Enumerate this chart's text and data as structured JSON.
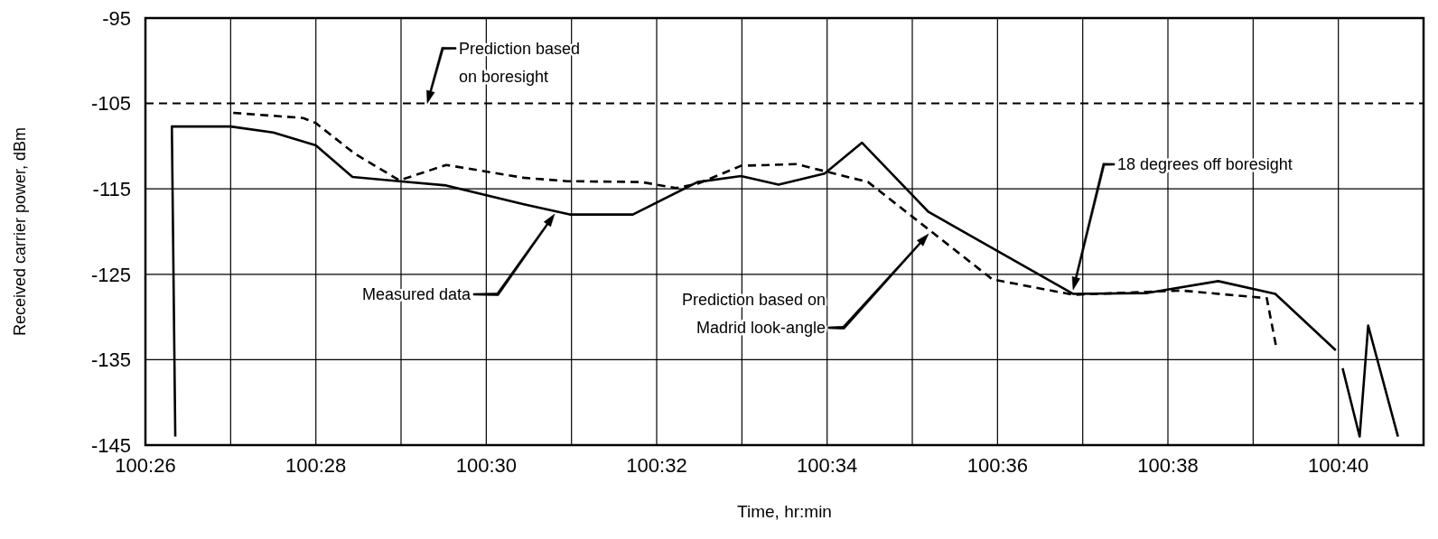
{
  "chart_data": {
    "type": "line",
    "xlabel": "Time, hr:min",
    "ylabel": "Received carrier power, dBm",
    "xlim": [
      100.43333,
      100.68333
    ],
    "xticks": [
      {
        "value": 100.43333,
        "label": "100:26"
      },
      {
        "value": 100.45,
        "label": null
      },
      {
        "value": 100.46667,
        "label": "100:28"
      },
      {
        "value": 100.48333,
        "label": null
      },
      {
        "value": 100.5,
        "label": "100:30"
      },
      {
        "value": 100.51667,
        "label": null
      },
      {
        "value": 100.53333,
        "label": "100:32"
      },
      {
        "value": 100.55,
        "label": null
      },
      {
        "value": 100.56667,
        "label": "100:34"
      },
      {
        "value": 100.58333,
        "label": null
      },
      {
        "value": 100.6,
        "label": "100:36"
      },
      {
        "value": 100.61667,
        "label": null
      },
      {
        "value": 100.63333,
        "label": "100:38"
      },
      {
        "value": 100.65,
        "label": null
      },
      {
        "value": 100.66667,
        "label": "100:40"
      }
    ],
    "ylim": [
      -145,
      -95
    ],
    "yticks": [
      -95,
      -105,
      -115,
      -125,
      -135,
      -145
    ],
    "grid": true,
    "series": [
      {
        "color": "#000000",
        "line_style": "solid",
        "x": [
          100.43917,
          100.4385,
          100.45,
          100.45833,
          100.46667,
          100.47383,
          100.483,
          100.49217,
          100.50733,
          100.51633,
          100.52867,
          100.54133,
          100.54983,
          100.55717,
          100.56617,
          100.5735,
          100.5865,
          100.61483,
          100.62917,
          100.64317,
          100.65433,
          100.66617,
          100.66683,
          100.6675,
          100.67083,
          100.6725,
          100.67833
        ],
        "values": [
          -144,
          -107.7,
          -107.7,
          -108.4,
          -109.9,
          -113.6,
          -114.1,
          -114.6,
          -116.8,
          -118,
          -118,
          -114.2,
          -113.5,
          -114.5,
          -113.2,
          -109.6,
          -117.7,
          -127.3,
          -127.2,
          -125.8,
          -127.3,
          -133.9,
          null,
          -136,
          -144,
          -131,
          -144
        ]
      },
      {
        "color": "#000000",
        "line_style": "dashed",
        "x": [
          100.4505,
          100.46417,
          100.46667,
          100.47433,
          100.483,
          100.49217,
          100.50733,
          100.51583,
          100.53033,
          100.53717,
          100.54133,
          100.54983,
          100.56067,
          100.57467,
          100.599,
          100.61483,
          100.636,
          100.65267,
          100.6545
        ],
        "values": [
          -106.1,
          -106.7,
          -107.3,
          -110.9,
          -114,
          -112.2,
          -113.7,
          -114.1,
          -114.2,
          -114.9,
          -114.4,
          -112.3,
          -112.1,
          -114.2,
          -125.6,
          -127.4,
          -126.9,
          -127.8,
          -133.5
        ]
      }
    ],
    "ref_lines": [
      {
        "axis": "y",
        "value": -105,
        "label": "Prediction based\non boresight",
        "line_style": "dashed",
        "color": "#000000"
      }
    ],
    "annotations": [
      "Measured data",
      "Prediction based on\nMadrid look-angle",
      "18 degrees off boresight"
    ]
  }
}
